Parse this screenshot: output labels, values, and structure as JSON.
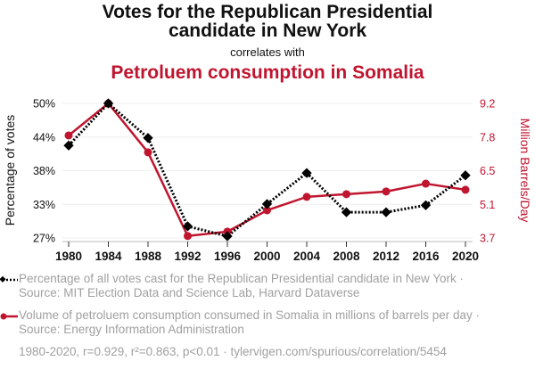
{
  "header": {
    "title_line1": "Votes for the Republican Presidential",
    "title_line2": "candidate in New York",
    "subtitle": "correlates with",
    "title2": "Petroluem consumption in Somalia"
  },
  "legend": [
    {
      "label": "Percentage of all votes cast for the Republican Presidential candidate in New York · Source: MIT Election Data and Science Lab, Harvard Dataverse",
      "icon": "black-dotted-diamond-line"
    },
    {
      "label": "Volume of petroluem consumption consumed in Somalia in millions of barrels per day · Source: Energy Information Administration",
      "icon": "red-solid-dot-line"
    }
  ],
  "footer": "1980-2020, r=0.929, r²=0.863, p<0.01 · tylervigen.com/spurious/correlation/5454",
  "colors": {
    "series1": "#000000",
    "series2": "#c0152f",
    "grid": "#eeeeee",
    "axis_text": "#111111"
  },
  "chart_data": {
    "type": "line",
    "title": "Votes for the Republican Presidential candidate in New York correlates with Petroluem consumption in Somalia",
    "x": [
      1980,
      1984,
      1988,
      1992,
      1996,
      2000,
      2004,
      2008,
      2012,
      2016,
      2020
    ],
    "x_tick_labels": [
      "1980",
      "1984",
      "1988",
      "1992",
      "1996",
      "2000",
      "2004",
      "2008",
      "2012",
      "2016",
      "2020"
    ],
    "xlim": [
      1980,
      2020
    ],
    "grid": true,
    "legend_position": "bottom",
    "series": [
      {
        "name": "Percentage of all votes cast for the Republican Presidential candidate in New York",
        "axis": "left",
        "style": "dotted-diamond",
        "values": [
          42.8,
          50.0,
          44.1,
          29.0,
          27.3,
          32.8,
          38.1,
          31.4,
          31.4,
          32.6,
          37.7
        ]
      },
      {
        "name": "Volume of petroluem consumption consumed in Somalia in millions of barrels per day",
        "axis": "right",
        "style": "solid-circle",
        "values": [
          7.89,
          9.2,
          7.2,
          3.78,
          3.96,
          4.83,
          5.38,
          5.49,
          5.6,
          5.92,
          5.67
        ]
      }
    ],
    "y_left": {
      "label": "Percentage of votes",
      "ticks": [
        50,
        44,
        38,
        33,
        27
      ],
      "tick_labels": [
        "50%",
        "44%",
        "38%",
        "33%",
        "27%"
      ],
      "ylim": [
        27,
        50
      ]
    },
    "y_right": {
      "label": "Million Barrels/Day",
      "ticks": [
        9.2,
        7.8,
        6.5,
        5.1,
        3.7
      ],
      "tick_labels": [
        "9.2",
        "7.8",
        "6.5",
        "5.1",
        "3.7"
      ],
      "ylim": [
        3.7,
        9.2
      ]
    }
  }
}
